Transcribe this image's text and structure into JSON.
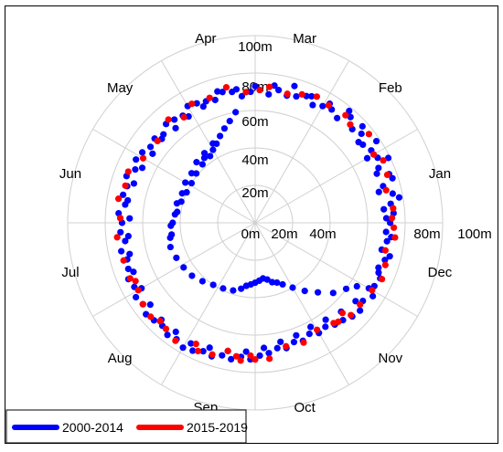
{
  "chart_data": {
    "type": "scatter",
    "subtype": "polar",
    "radial_unit": "m",
    "radial_range": [
      0,
      100
    ],
    "radial_ticks": [
      "0m",
      "20m",
      "40m",
      "60m",
      "80m",
      "100m"
    ],
    "radial_tick_values": [
      0,
      20,
      40,
      60,
      80,
      100
    ],
    "angular_labels": [
      "Jan",
      "Feb",
      "Mar",
      "Apr",
      "May",
      "Jun",
      "Jul",
      "Aug",
      "Sep",
      "Oct",
      "Nov",
      "Dec"
    ],
    "angular_label_angles_deg": [
      15,
      45,
      75,
      105,
      135,
      165,
      195,
      225,
      255,
      285,
      315,
      345
    ],
    "grid": true,
    "legend_position": "bottom-left",
    "colors": {
      "series_1": "#0000ff",
      "series_2": "#ff0000",
      "grid": "#d0d0d0"
    },
    "series": [
      {
        "name": "2000-2014",
        "points": [
          [
            0,
            72
          ],
          [
            4,
            74
          ],
          [
            8,
            73
          ],
          [
            12,
            75
          ],
          [
            16,
            71
          ],
          [
            20,
            76
          ],
          [
            24,
            72
          ],
          [
            28,
            74
          ],
          [
            32,
            73
          ],
          [
            36,
            71
          ],
          [
            40,
            74
          ],
          [
            44,
            72
          ],
          [
            48,
            76
          ],
          [
            52,
            71
          ],
          [
            56,
            73
          ],
          [
            60,
            72
          ],
          [
            64,
            70
          ],
          [
            68,
            73
          ],
          [
            72,
            71
          ],
          [
            76,
            70
          ],
          [
            80,
            72
          ],
          [
            84,
            69
          ],
          [
            88,
            71
          ],
          [
            92,
            70
          ],
          [
            96,
            68
          ],
          [
            100,
            71
          ],
          [
            104,
            72
          ],
          [
            108,
            69
          ],
          [
            112,
            70
          ],
          [
            116,
            71
          ],
          [
            120,
            72
          ],
          [
            124,
            69
          ],
          [
            128,
            70
          ],
          [
            132,
            71
          ],
          [
            136,
            68
          ],
          [
            140,
            70
          ],
          [
            144,
            69
          ],
          [
            148,
            71
          ],
          [
            152,
            72
          ],
          [
            156,
            70
          ],
          [
            160,
            73
          ],
          [
            164,
            71
          ],
          [
            168,
            72
          ],
          [
            172,
            70
          ],
          [
            176,
            73
          ],
          [
            180,
            71
          ],
          [
            184,
            72
          ],
          [
            188,
            70
          ],
          [
            192,
            73
          ],
          [
            196,
            71
          ],
          [
            200,
            72
          ],
          [
            204,
            74
          ],
          [
            208,
            73
          ],
          [
            212,
            75
          ],
          [
            216,
            74
          ],
          [
            220,
            76
          ],
          [
            224,
            75
          ],
          [
            228,
            74
          ],
          [
            232,
            76
          ],
          [
            236,
            75
          ],
          [
            240,
            77
          ],
          [
            244,
            76
          ],
          [
            248,
            74
          ],
          [
            252,
            75
          ],
          [
            256,
            73
          ],
          [
            260,
            74
          ],
          [
            264,
            72
          ],
          [
            268,
            73
          ],
          [
            272,
            71
          ],
          [
            276,
            70
          ],
          [
            280,
            68
          ],
          [
            284,
            69
          ],
          [
            288,
            67
          ],
          [
            292,
            68
          ],
          [
            296,
            66
          ],
          [
            300,
            68
          ],
          [
            304,
            67
          ],
          [
            308,
            69
          ],
          [
            312,
            70
          ],
          [
            316,
            72
          ],
          [
            320,
            73
          ],
          [
            324,
            71
          ],
          [
            328,
            74
          ],
          [
            332,
            72
          ],
          [
            336,
            73
          ],
          [
            340,
            70
          ],
          [
            344,
            72
          ],
          [
            348,
            69
          ],
          [
            352,
            71
          ],
          [
            356,
            70
          ],
          [
            2,
            70
          ],
          [
            10,
            78
          ],
          [
            18,
            77
          ],
          [
            26,
            79
          ],
          [
            34,
            78
          ],
          [
            42,
            77
          ],
          [
            50,
            78
          ],
          [
            58,
            75
          ],
          [
            66,
            74
          ],
          [
            74,
            76
          ],
          [
            82,
            74
          ],
          [
            90,
            73
          ],
          [
            98,
            72
          ],
          [
            106,
            73
          ],
          [
            114,
            68
          ],
          [
            122,
            67
          ],
          [
            130,
            66
          ],
          [
            138,
            67
          ],
          [
            146,
            66
          ],
          [
            154,
            67
          ],
          [
            162,
            68
          ],
          [
            170,
            69
          ],
          [
            178,
            67
          ],
          [
            186,
            68
          ],
          [
            194,
            69
          ],
          [
            202,
            70
          ],
          [
            210,
            70
          ],
          [
            218,
            71
          ],
          [
            226,
            72
          ],
          [
            234,
            72
          ],
          [
            242,
            73
          ],
          [
            250,
            71
          ],
          [
            258,
            70
          ],
          [
            266,
            69
          ],
          [
            274,
            67
          ],
          [
            282,
            65
          ],
          [
            290,
            64
          ],
          [
            298,
            63
          ],
          [
            306,
            64
          ],
          [
            314,
            66
          ],
          [
            322,
            68
          ],
          [
            330,
            70
          ],
          [
            338,
            71
          ],
          [
            346,
            74
          ],
          [
            354,
            73
          ],
          [
            6,
            69
          ],
          [
            14,
            68
          ],
          [
            22,
            70
          ],
          [
            30,
            69
          ],
          [
            38,
            70
          ],
          [
            100,
            60
          ],
          [
            104,
            56
          ],
          [
            108,
            53
          ],
          [
            112,
            50
          ],
          [
            116,
            47
          ],
          [
            120,
            45
          ],
          [
            124,
            43
          ],
          [
            128,
            44
          ],
          [
            132,
            42
          ],
          [
            140,
            41
          ],
          [
            148,
            40
          ],
          [
            156,
            40
          ],
          [
            164,
            41
          ],
          [
            172,
            42
          ],
          [
            180,
            44
          ],
          [
            188,
            45
          ],
          [
            196,
            47
          ],
          [
            204,
            46
          ],
          [
            212,
            45
          ],
          [
            220,
            44
          ],
          [
            228,
            42
          ],
          [
            236,
            40
          ],
          [
            244,
            39
          ],
          [
            252,
            38
          ],
          [
            258,
            36
          ],
          [
            262,
            34
          ],
          [
            266,
            33
          ],
          [
            270,
            32
          ],
          [
            274,
            31
          ],
          [
            278,
            30
          ],
          [
            282,
            31
          ],
          [
            286,
            33
          ],
          [
            290,
            34
          ],
          [
            294,
            36
          ],
          [
            300,
            40
          ],
          [
            306,
            45
          ],
          [
            312,
            50
          ],
          [
            318,
            56
          ],
          [
            324,
            60
          ],
          [
            328,
            64
          ],
          [
            118,
            48
          ],
          [
            126,
            46
          ],
          [
            134,
            45
          ],
          [
            142,
            43
          ],
          [
            150,
            43
          ],
          [
            158,
            42
          ],
          [
            166,
            43
          ],
          [
            174,
            43
          ],
          [
            182,
            45
          ],
          [
            190,
            46
          ]
        ]
      },
      {
        "name": "2015-2019",
        "points": [
          [
            2,
            73
          ],
          [
            6,
            74
          ],
          [
            14,
            72
          ],
          [
            20,
            75
          ],
          [
            26,
            76
          ],
          [
            30,
            73
          ],
          [
            38,
            77
          ],
          [
            46,
            73
          ],
          [
            50,
            75
          ],
          [
            58,
            74
          ],
          [
            64,
            75
          ],
          [
            70,
            73
          ],
          [
            76,
            71
          ],
          [
            84,
            73
          ],
          [
            88,
            71
          ],
          [
            94,
            70
          ],
          [
            102,
            74
          ],
          [
            110,
            71
          ],
          [
            118,
            72
          ],
          [
            124,
            68
          ],
          [
            130,
            72
          ],
          [
            140,
            68
          ],
          [
            150,
            69
          ],
          [
            158,
            73
          ],
          [
            164,
            72
          ],
          [
            170,
            74
          ],
          [
            178,
            72
          ],
          [
            186,
            74
          ],
          [
            196,
            73
          ],
          [
            204,
            73
          ],
          [
            210,
            72
          ],
          [
            216,
            74
          ],
          [
            222,
            75
          ],
          [
            230,
            74
          ],
          [
            236,
            76
          ],
          [
            246,
            75
          ],
          [
            252,
            74
          ],
          [
            258,
            70
          ],
          [
            262,
            72
          ],
          [
            268,
            71
          ],
          [
            276,
            73
          ],
          [
            284,
            68
          ],
          [
            292,
            69
          ],
          [
            300,
            66
          ],
          [
            308,
            68
          ],
          [
            314,
            67
          ],
          [
            322,
            71
          ],
          [
            330,
            72
          ],
          [
            336,
            74
          ],
          [
            342,
            73
          ],
          [
            348,
            71
          ],
          [
            354,
            75
          ],
          [
            358,
            74
          ],
          [
            206,
            71
          ],
          [
            226,
            73
          ],
          [
            244,
            72
          ],
          [
            264,
            74
          ],
          [
            270,
            73
          ],
          [
            310,
            69
          ],
          [
            316,
            71
          ]
        ]
      }
    ]
  }
}
